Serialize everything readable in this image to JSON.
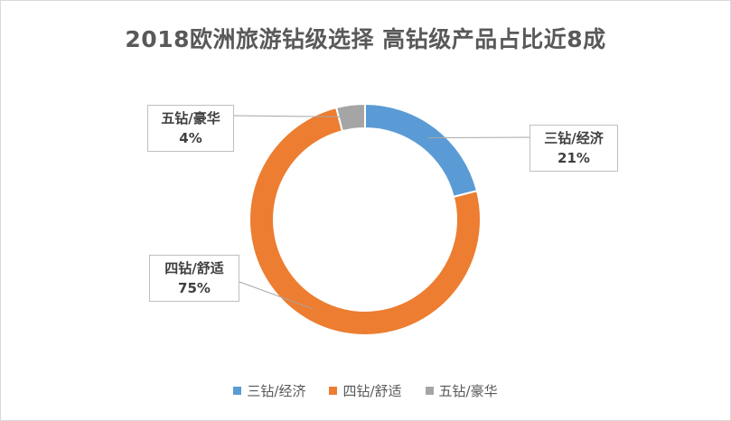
{
  "chart_data": {
    "type": "pie",
    "variant": "doughnut",
    "title": "2018欧洲旅游钻级选择 高钻级产品占比近8成",
    "categories": [
      "三钻/经济",
      "四钻/舒适",
      "五钻/豪华"
    ],
    "values": [
      21,
      75,
      4
    ],
    "value_labels": [
      "21%",
      "75%",
      "4%"
    ],
    "colors": [
      "#5b9bd5",
      "#ed7d31",
      "#a5a5a5"
    ],
    "legend": {
      "position": "bottom",
      "entries": [
        "三钻/经济",
        "四钻/舒适",
        "五钻/豪华"
      ]
    }
  }
}
